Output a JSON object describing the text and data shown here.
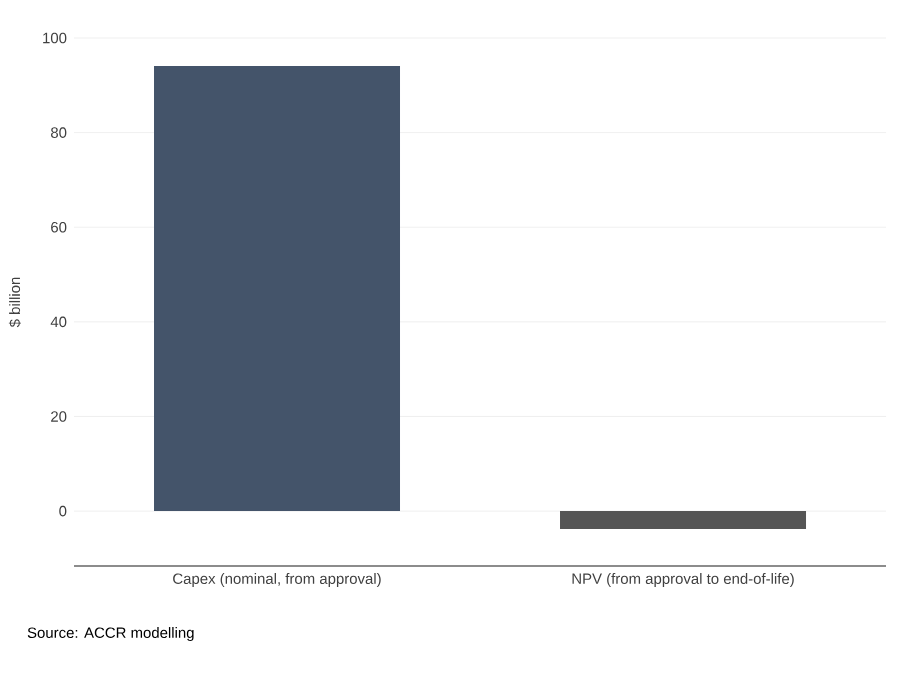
{
  "chart_data": {
    "type": "bar",
    "ylabel": "$ billion",
    "categories": [
      "Capex (nominal, from approval)",
      "NPV (from approval to end-of-life)"
    ],
    "values": [
      94.1,
      -3.8
    ],
    "colors": [
      "#44546a",
      "#555555"
    ],
    "ylim": [
      -11.6,
      100
    ],
    "yticks": [
      0,
      20,
      40,
      60,
      80,
      100
    ],
    "grid": "y",
    "annotations": [
      "Source: ACCR modelling"
    ]
  }
}
